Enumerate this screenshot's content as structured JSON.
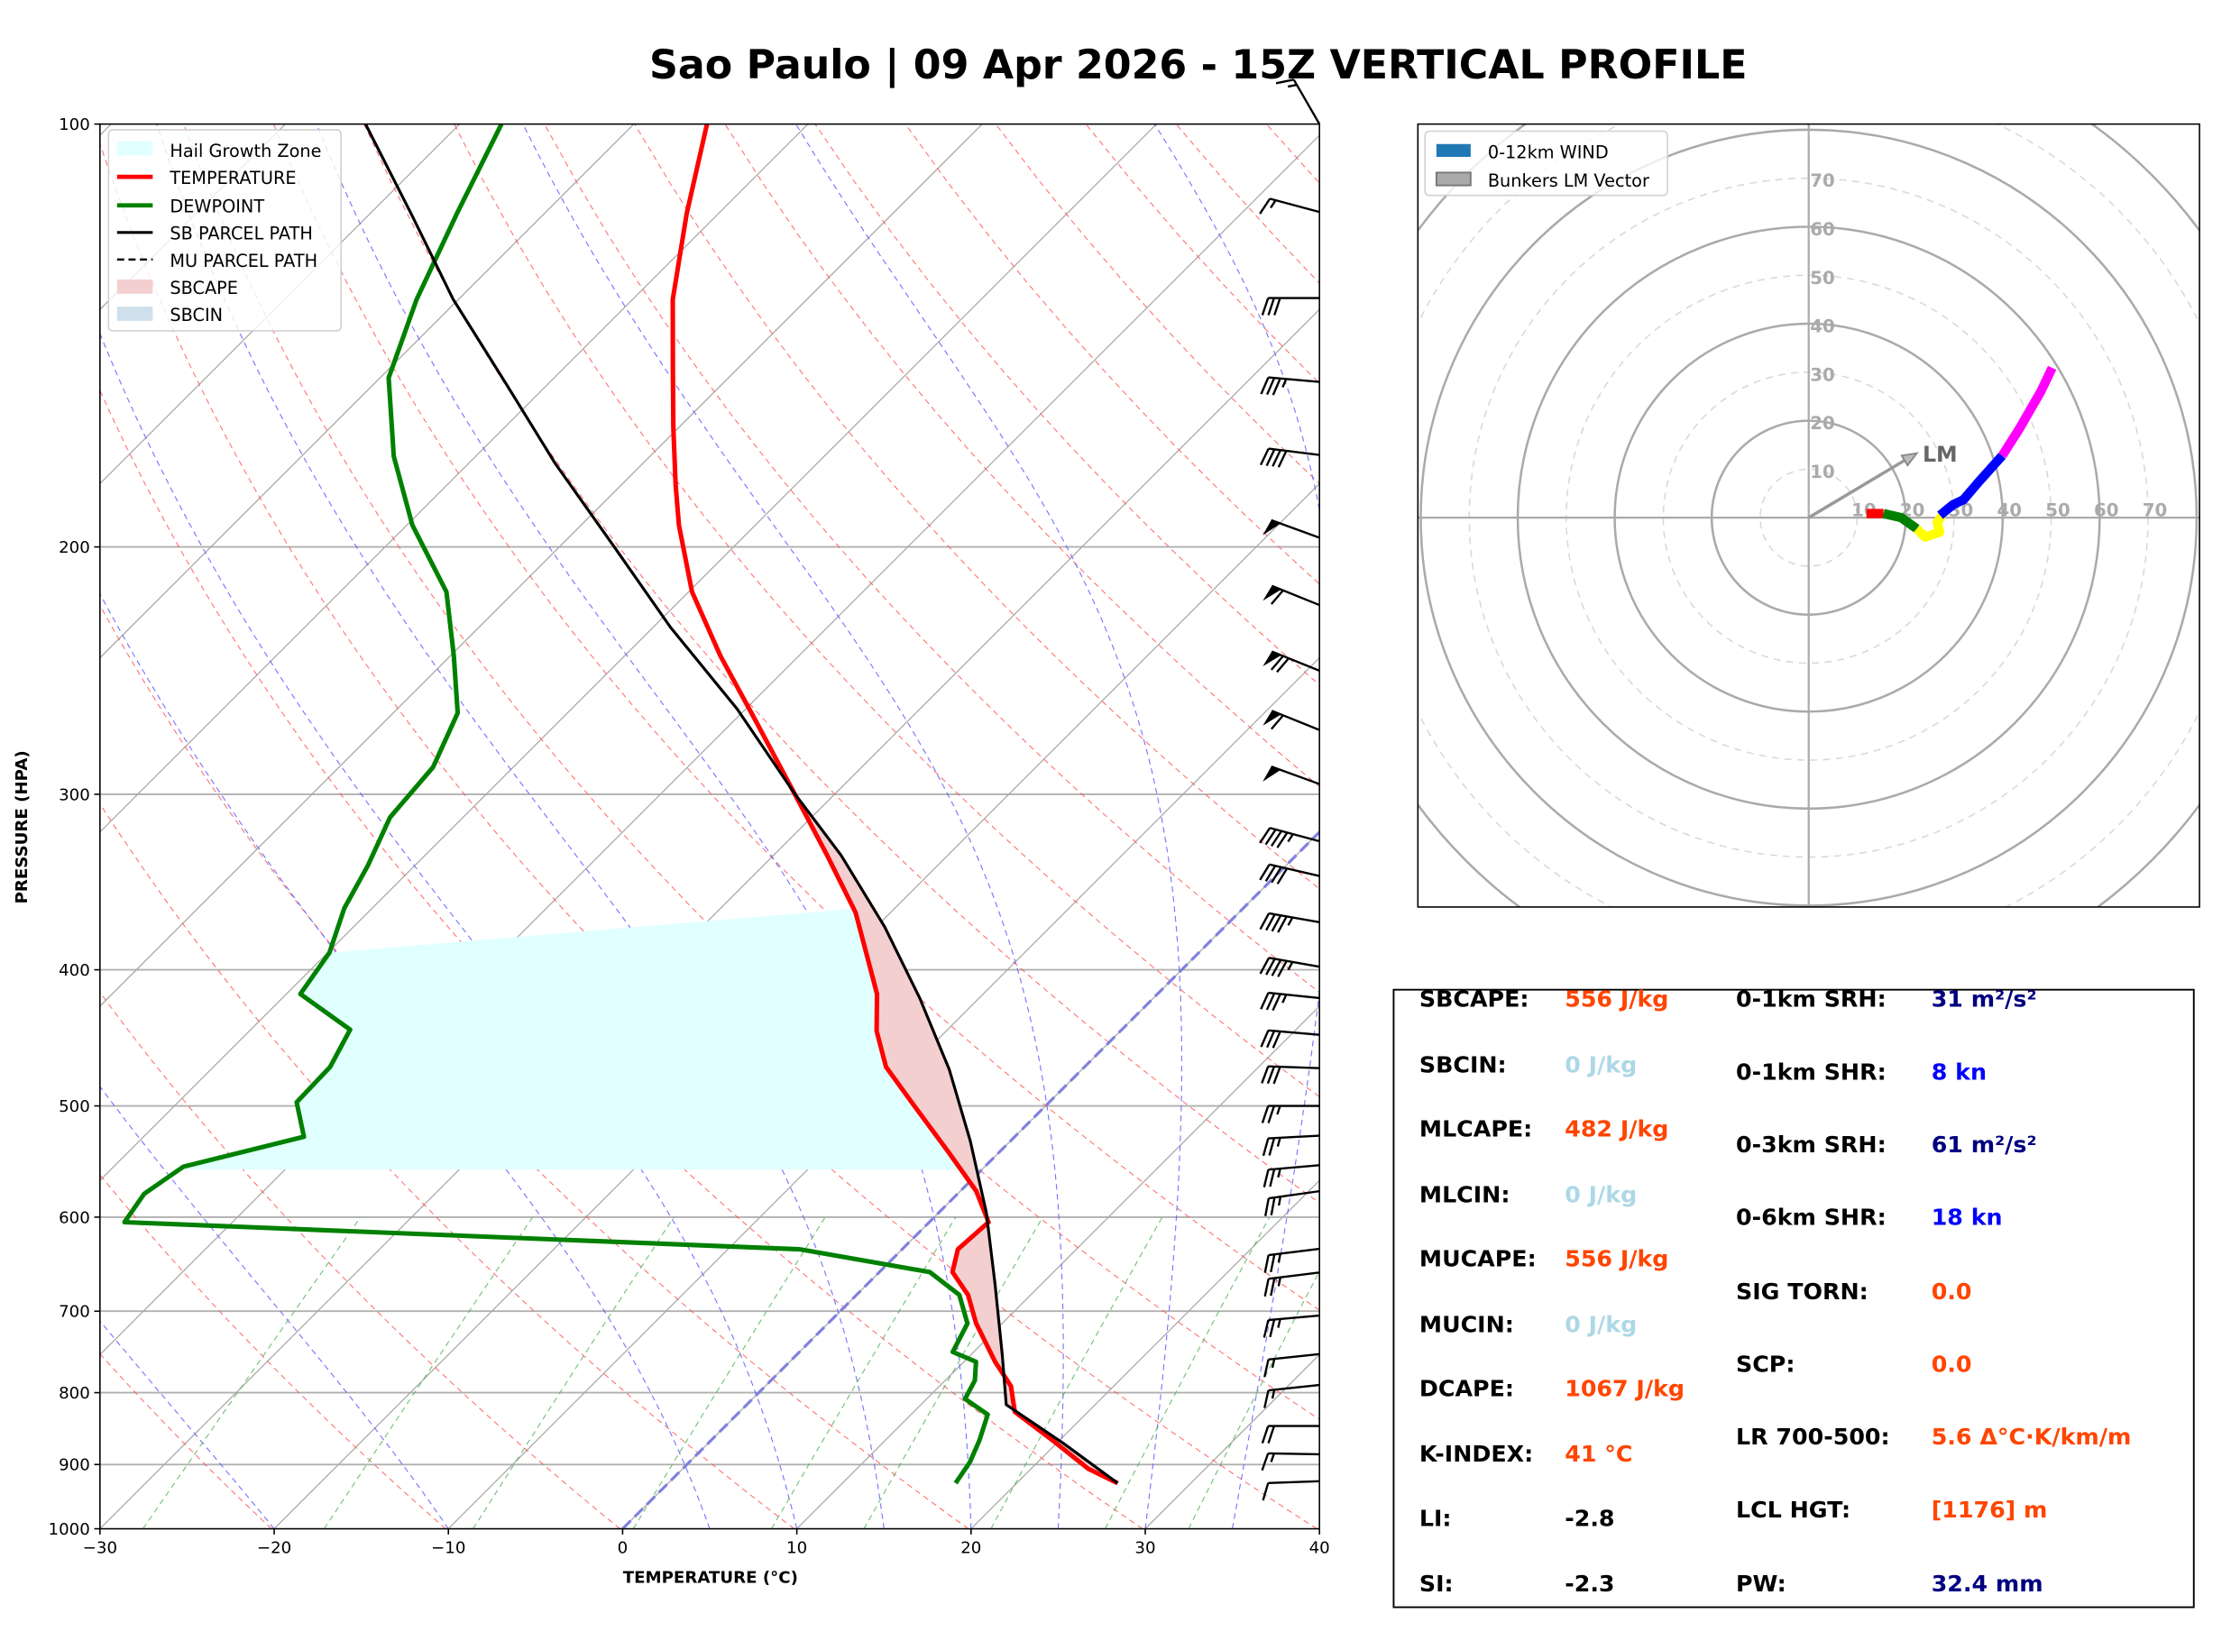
{
  "title": "Sao Paulo | 09 Apr 2026 - 15Z VERTICAL PROFILE",
  "chart_data": [
    {
      "type": "line",
      "name": "skew-t",
      "xlabel": "TEMPERATURE (°C)",
      "ylabel": "PRESSURE (HPA)",
      "xlim": [
        -30,
        40
      ],
      "ylim": [
        1000,
        100
      ],
      "x_ticks": [
        "−30",
        "−20",
        "−10",
        "0",
        "10",
        "20",
        "30",
        "40"
      ],
      "x_tick_values": [
        -30,
        -20,
        -10,
        0,
        10,
        20,
        30,
        40
      ],
      "y_ticks": [
        "100",
        "200",
        "300",
        "400",
        "500",
        "600",
        "700",
        "800",
        "900",
        "1000"
      ],
      "y_tick_values": [
        100,
        200,
        300,
        400,
        500,
        600,
        700,
        800,
        900,
        1000
      ],
      "legend": {
        "placement": "top-left",
        "items": [
          "Hail Growth Zone",
          "TEMPERATURE",
          "DEWPOINT",
          "SB PARCEL PATH",
          "MU PARCEL PATH",
          "SBCAPE",
          "SBCIN"
        ]
      },
      "colors": {
        "temperature": "#ff0000",
        "dewpoint": "#008000",
        "parcel": "#000000",
        "cape": "#f4cfd0",
        "cin": "#cfe0ec",
        "hail": "#e0ffff"
      },
      "temperature": {
        "p": [
          100,
          115.9,
          133.3,
          149.8,
          164.5,
          180.6,
          192.9,
          215.3,
          239.1,
          265.7,
          299.3,
          331.7,
          364.2,
          416.2,
          442.2,
          469.0,
          499.4,
          539.5,
          574.8,
          604.9,
          617.8,
          632.4,
          656.6,
          681.6,
          714.1,
          760.6,
          791.5,
          825.5,
          865.0,
          906.5,
          928
        ],
        "t": [
          -75.8,
          -71.8,
          -67.7,
          -63.6,
          -60.3,
          -56.9,
          -54.4,
          -49.8,
          -44.5,
          -38.8,
          -32.4,
          -26.9,
          -22.0,
          -16.1,
          -14.0,
          -11.4,
          -7.6,
          -2.9,
          0.9,
          3.4,
          3.3,
          3.2,
          4.2,
          6.4,
          8.5,
          11.8,
          14.1,
          15.8,
          19.6,
          23.3,
          25.8
        ]
      },
      "dewpoint": {
        "p": [
          100,
          115.9,
          133.3,
          151.6,
          172.4,
          192.9,
          215.3,
          239.1,
          262.6,
          287.0,
          311.5,
          337.2,
          361.6,
          388.9,
          416.2,
          441.2,
          469.0,
          497.0,
          525.9,
          552.4,
          577.4,
          604.9,
          632.4,
          656.6,
          681.6,
          714.1,
          748.3,
          760.6,
          784.1,
          808.2,
          829.3,
          865.0,
          896.1,
          928
        ],
        "t": [
          -87.6,
          -85.0,
          -82.4,
          -79.5,
          -74.7,
          -69.7,
          -63.9,
          -59.8,
          -56.3,
          -54.6,
          -54.2,
          -52.7,
          -51.6,
          -49.9,
          -49.2,
          -44.3,
          -43.3,
          -43.2,
          -40.8,
          -46.0,
          -46.7,
          -46.2,
          -5.9,
          2.9,
          5.9,
          8.0,
          8.8,
          10.7,
          11.7,
          12.2,
          14.4,
          15.4,
          16.1,
          16.5
        ]
      },
      "sb_parcel": {
        "p": [
          100,
          115.9,
          133.3,
          153.4,
          174.5,
          199.8,
          228.2,
          260.8,
          299.3,
          331.7,
          372.9,
          419.1,
          471.2,
          529.6,
          595.1,
          669.0,
          751.8,
          816.0,
          869.3,
          928
        ],
        "t": [
          -95.4,
          -87.6,
          -80.3,
          -72.3,
          -65.0,
          -56.9,
          -49.0,
          -40.5,
          -32.4,
          -26.1,
          -19.5,
          -13.4,
          -7.6,
          -2.3,
          2.7,
          7.3,
          11.8,
          14.9,
          20.4,
          25.8
        ]
      },
      "sbcape_range_hpa": [
        928,
        299.3
      ],
      "hail_growth_zone": {
        "p_bottom": 555,
        "p_top_left": 389,
        "p_top_right": 362
      },
      "reference_lines": {
        "isotherms_c": [
          -110,
          -100,
          -90,
          -80,
          -70,
          -60,
          -50,
          -40,
          -30,
          -20,
          -10,
          0,
          10,
          20,
          30,
          40
        ],
        "dry_adiabats_k": [
          243,
          253,
          263,
          273,
          283,
          293,
          303,
          313,
          323,
          333,
          343,
          353,
          363,
          373,
          383,
          393,
          403,
          413,
          423,
          433,
          443,
          453,
          463,
          473
        ],
        "moist_adiabats_c_at_1000": [
          -30,
          -20,
          -10,
          5,
          10,
          15,
          20,
          25,
          30,
          35
        ],
        "mixing_ratios_gkg": [
          0.4,
          1,
          2,
          4,
          7,
          10,
          16,
          24,
          32
        ],
        "freezing_isotherm_c": 0
      },
      "wind_barbs": [
        {
          "p": 100,
          "dir": 330,
          "speed": 15
        },
        {
          "p": 115.5,
          "dir": 285,
          "speed": 15
        },
        {
          "p": 133,
          "dir": 270,
          "speed": 30
        },
        {
          "p": 152.6,
          "dir": 275,
          "speed": 35
        },
        {
          "p": 172,
          "dir": 277,
          "speed": 40
        },
        {
          "p": 197,
          "dir": 290,
          "speed": 50
        },
        {
          "p": 220,
          "dir": 292,
          "speed": 60
        },
        {
          "p": 245,
          "dir": 292,
          "speed": 70
        },
        {
          "p": 270,
          "dir": 292,
          "speed": 60
        },
        {
          "p": 295,
          "dir": 290,
          "speed": 50
        },
        {
          "p": 324,
          "dir": 285,
          "speed": 45
        },
        {
          "p": 343,
          "dir": 283,
          "speed": 40
        },
        {
          "p": 370,
          "dir": 280,
          "speed": 45
        },
        {
          "p": 398,
          "dir": 280,
          "speed": 45
        },
        {
          "p": 419,
          "dir": 276,
          "speed": 35
        },
        {
          "p": 445,
          "dir": 275,
          "speed": 30
        },
        {
          "p": 470,
          "dir": 272,
          "speed": 30
        },
        {
          "p": 500,
          "dir": 270,
          "speed": 25
        },
        {
          "p": 525,
          "dir": 267,
          "speed": 25
        },
        {
          "p": 551,
          "dir": 265,
          "speed": 25
        },
        {
          "p": 575,
          "dir": 262,
          "speed": 25
        },
        {
          "p": 632,
          "dir": 263,
          "speed": 25
        },
        {
          "p": 657,
          "dir": 263,
          "speed": 25
        },
        {
          "p": 705,
          "dir": 265,
          "speed": 25
        },
        {
          "p": 751,
          "dir": 264,
          "speed": 15
        },
        {
          "p": 790,
          "dir": 264,
          "speed": 15
        },
        {
          "p": 845,
          "dir": 270,
          "speed": 20
        },
        {
          "p": 885,
          "dir": 271,
          "speed": 15
        },
        {
          "p": 925,
          "dir": 268,
          "speed": 10
        }
      ]
    },
    {
      "type": "line",
      "name": "hodograph",
      "units": "kn",
      "legend": {
        "placement": "top-left",
        "items": [
          "0-12km WIND",
          "Bunkers LM Vector"
        ]
      },
      "ring_labels": [
        "10",
        "20",
        "30",
        "40",
        "50",
        "60",
        "70"
      ],
      "ring_values": [
        10,
        20,
        30,
        40,
        50,
        60,
        70
      ],
      "segments": [
        {
          "color": "#ff0000",
          "u": [
            11.9,
            15.4
          ],
          "v": [
            0.85,
            0.85
          ]
        },
        {
          "color": "#008000",
          "u": [
            15.4,
            19.1,
            22.3
          ],
          "v": [
            0.85,
            0.0,
            -2.3
          ]
        },
        {
          "color": "#ffff00",
          "u": [
            22.3,
            24.0,
            27.0,
            26.5,
            27.5
          ],
          "v": [
            -2.3,
            -4.0,
            -3.0,
            -1.0,
            0.5
          ]
        },
        {
          "color": "#0000ff",
          "u": [
            27.1,
            29.8,
            31.9,
            35.1,
            39.9
          ],
          "v": [
            0.5,
            2.7,
            3.7,
            7.4,
            12.8
          ]
        },
        {
          "color": "#ff00ff",
          "u": [
            39.9,
            43.6,
            47.9,
            50.2
          ],
          "v": [
            12.8,
            18.6,
            26.1,
            30.9
          ]
        }
      ],
      "bunkers_lm": {
        "u": 22.3,
        "v": 13.3,
        "label": "LM"
      }
    }
  ],
  "stats": {
    "left": [
      {
        "label": "SBCAPE:",
        "value": "556 J/kg",
        "color": "#ff4500"
      },
      {
        "label": "SBCIN:",
        "value": "0 J/kg",
        "color": "#add8e6"
      },
      {
        "label": "MLCAPE:",
        "value": "482 J/kg",
        "color": "#ff4500"
      },
      {
        "label": "MLCIN:",
        "value": "0 J/kg",
        "color": "#add8e6"
      },
      {
        "label": "MUCAPE:",
        "value": "556 J/kg",
        "color": "#ff4500"
      },
      {
        "label": "MUCIN:",
        "value": "0 J/kg",
        "color": "#add8e6"
      },
      {
        "label": "DCAPE:",
        "value": "1067 J/kg",
        "color": "#ff4500"
      },
      {
        "label": "K-INDEX:",
        "value": "41 °C",
        "color": "#ff4500"
      },
      {
        "label": "LI:",
        "value": "-2.8",
        "color": "#000000"
      },
      {
        "label": "SI:",
        "value": "-2.3",
        "color": "#000000"
      }
    ],
    "right": [
      {
        "label": "0-1km SRH:",
        "value": "31 m²/s²",
        "color": "#000080"
      },
      {
        "label": "0-1km SHR:",
        "value": "8 kn",
        "color": "#0000ff"
      },
      {
        "label": "0-3km SRH:",
        "value": "61 m²/s²",
        "color": "#000080"
      },
      {
        "label": "0-6km SHR:",
        "value": "18 kn",
        "color": "#0000ff"
      },
      {
        "label": "SIG TORN:",
        "value": "0.0",
        "color": "#ff4500"
      },
      {
        "label": "SCP:",
        "value": "0.0",
        "color": "#ff4500"
      },
      {
        "label": "LR 700-500:",
        "value": "5.6 Δ°C·K/km/m",
        "color": "#ff4500"
      },
      {
        "label": "LCL HGT:",
        "value": "[1176] m",
        "color": "#ff4500"
      },
      {
        "label": "PW:",
        "value": "32.4 mm",
        "color": "#000080"
      }
    ]
  }
}
